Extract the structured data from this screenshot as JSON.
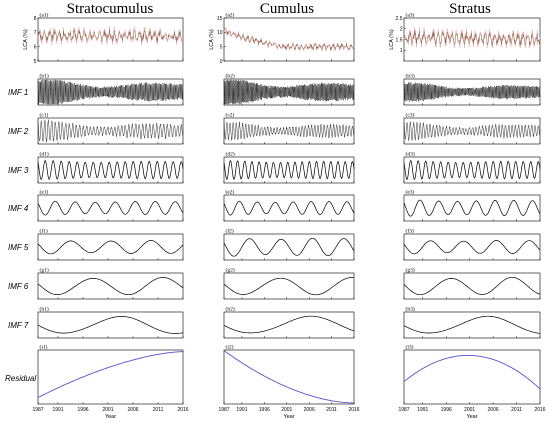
{
  "figure": {
    "columns": [
      "Stratocumulus",
      "Cumulus",
      "Stratus"
    ],
    "row_labels": [
      "",
      "IMF 1",
      "IMF 2",
      "IMF 3",
      "IMF 4",
      "IMF 5",
      "IMF 6",
      "IMF 7",
      "Residual"
    ],
    "panel_tags": [
      [
        "(a1)",
        "(b1)",
        "(c1)",
        "(d1)",
        "(e1)",
        "(f1)",
        "(g1)",
        "(h1)",
        "(i1)"
      ],
      [
        "(a2)",
        "(b2)",
        "(c2)",
        "(d2)",
        "(e2)",
        "(f2)",
        "(g2)",
        "(h2)",
        "(i2)"
      ],
      [
        "(a3)",
        "(b3)",
        "(c3)",
        "(d3)",
        "(e3)",
        "(f3)",
        "(g3)",
        "(h3)",
        "(i3)"
      ]
    ],
    "top_ylabel": "LCA (%)",
    "xlabel": "Year",
    "xticks": [
      "1987",
      "1991",
      "1996",
      "2001",
      "2006",
      "2011",
      "2016"
    ],
    "colors": {
      "raw": "#e8a0a0",
      "fit": "#5a4a2a",
      "imf": "#000000",
      "residual": "#5555cc"
    }
  },
  "chart_data": [
    {
      "type": "line",
      "title": "Stratocumulus",
      "x_range": [
        1987,
        2016
      ],
      "xlabel": "Year",
      "panels": [
        {
          "row": "top",
          "ylabel": "LCA (%)",
          "ylim": [
            5,
            8
          ],
          "yticks": [
            "5",
            "6",
            "7",
            "8"
          ],
          "series_seed": 11,
          "level_start": 6.8,
          "level_end": 6.7,
          "amplitude": 0.5
        },
        {
          "row": "IMF 1",
          "period_years": 0.25,
          "amplitude": 0.8
        },
        {
          "row": "IMF 2",
          "period_years": 0.7,
          "amplitude": 0.7
        },
        {
          "row": "IMF 3",
          "period_years": 1.6,
          "amplitude": 0.8
        },
        {
          "row": "IMF 4",
          "period_years": 4.0,
          "amplitude": 0.6
        },
        {
          "row": "IMF 5",
          "period_years": 8.0,
          "amplitude": 0.6
        },
        {
          "row": "IMF 6",
          "period_years": 14.0,
          "amplitude": 0.8
        },
        {
          "row": "IMF 7",
          "period_years": 22.0,
          "amplitude": 0.8
        },
        {
          "row": "Residual",
          "trend": "increasing"
        }
      ]
    },
    {
      "type": "line",
      "title": "Cumulus",
      "x_range": [
        1987,
        2016
      ],
      "xlabel": "Year",
      "panels": [
        {
          "row": "top",
          "ylabel": "LCA (%)",
          "ylim": [
            0,
            15
          ],
          "yticks": [
            "0",
            "5",
            "10",
            "15"
          ],
          "series_seed": 23,
          "level_start": 11,
          "level_end": 5,
          "amplitude": 1.2
        },
        {
          "row": "IMF 1",
          "period_years": 0.25,
          "amplitude": 0.8
        },
        {
          "row": "IMF 2",
          "period_years": 0.7,
          "amplitude": 0.6
        },
        {
          "row": "IMF 3",
          "period_years": 1.6,
          "amplitude": 0.8
        },
        {
          "row": "IMF 4",
          "period_years": 4.0,
          "amplitude": 0.6
        },
        {
          "row": "IMF 5",
          "period_years": 7.0,
          "amplitude": 0.8
        },
        {
          "row": "IMF 6",
          "period_years": 16.0,
          "amplitude": 0.8
        },
        {
          "row": "IMF 7",
          "period_years": 26.0,
          "amplitude": 0.8
        },
        {
          "row": "Residual",
          "trend": "decreasing"
        }
      ]
    },
    {
      "type": "line",
      "title": "Stratus",
      "x_range": [
        1987,
        2016
      ],
      "xlabel": "Year",
      "panels": [
        {
          "row": "top",
          "ylabel": "LCA (%)",
          "ylim": [
            0.5,
            2.5
          ],
          "yticks": [
            "1",
            "1.5",
            "2",
            "2.5"
          ],
          "series_seed": 37,
          "level_start": 1.6,
          "level_end": 1.5,
          "amplitude": 0.35
        },
        {
          "row": "IMF 1",
          "period_years": 0.25,
          "amplitude": 0.6
        },
        {
          "row": "IMF 2",
          "period_years": 0.7,
          "amplitude": 0.6
        },
        {
          "row": "IMF 3",
          "period_years": 1.6,
          "amplitude": 0.8
        },
        {
          "row": "IMF 4",
          "period_years": 4.0,
          "amplitude": 0.7
        },
        {
          "row": "IMF 5",
          "period_years": 7.0,
          "amplitude": 0.6
        },
        {
          "row": "IMF 6",
          "period_years": 13.0,
          "amplitude": 0.8
        },
        {
          "row": "IMF 7",
          "period_years": 24.0,
          "amplitude": 0.8
        },
        {
          "row": "Residual",
          "trend": "arch"
        }
      ]
    }
  ]
}
